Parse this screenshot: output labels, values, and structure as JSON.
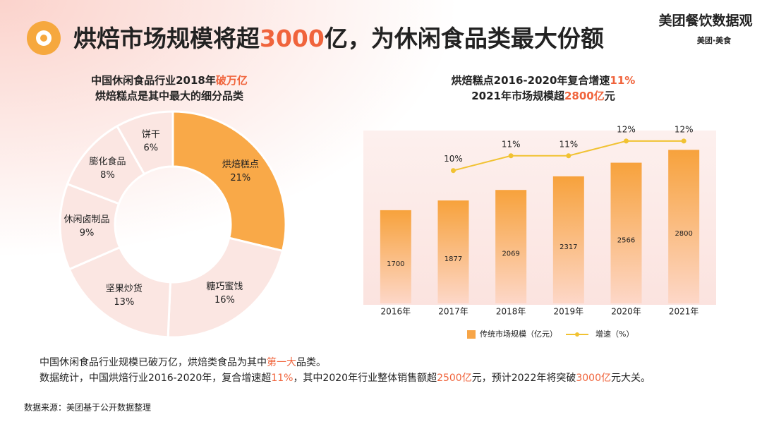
{
  "header": {
    "title": [
      "烘焙市场规模将超",
      "3000",
      "亿，为休闲食品类最大份额"
    ],
    "logo": "美团餐饮数据观",
    "brand": "美团·美食"
  },
  "chart_data": [
    {
      "type": "donut",
      "subtitle_lines": [
        [
          "中国休闲食品行业2018年",
          "破万亿"
        ],
        [
          "烘焙糕点是其中最大的细分品类"
        ]
      ],
      "categories": [
        "烘焙糕点",
        "糖巧蜜饯",
        "坚果炒货",
        "休闲卤制品",
        "膨化食品",
        "饼干"
      ],
      "values": [
        21,
        16,
        13,
        9,
        8,
        6
      ],
      "value_labels": [
        "21%",
        "16%",
        "13%",
        "9%",
        "8%",
        "6%"
      ],
      "colors": [
        "#f9a948",
        "#fbe6e2",
        "#fbe6e2",
        "#fbe6e2",
        "#fbe6e2",
        "#fbe6e2"
      ]
    },
    {
      "type": "bar_line",
      "subtitle_lines": [
        [
          "烘焙糕点2016-2020年复合增速",
          "11%"
        ],
        [
          "2021年市场规模超",
          "2800亿",
          "元"
        ]
      ],
      "categories": [
        "2016年",
        "2017年",
        "2018年",
        "2019年",
        "2020年",
        "2021年"
      ],
      "ylim": [
        0,
        3500
      ],
      "y2lim": [
        1,
        14
      ],
      "series": [
        {
          "name": "传统市场规模（亿元）",
          "type": "bar",
          "color": "#f7a547",
          "values": [
            1700,
            1877,
            2069,
            2317,
            2566,
            2800
          ]
        },
        {
          "name": "增速（%）",
          "type": "line",
          "axis": "y2",
          "color": "#f1c232",
          "values": [
            null,
            10,
            11,
            11,
            12,
            12
          ],
          "value_labels": [
            null,
            "10%",
            "11%",
            "11%",
            "12%",
            "12%"
          ]
        }
      ]
    }
  ],
  "notes": [
    [
      "中国休闲食品行业规模已破万亿，烘焙类食品为其中",
      "第一大",
      "品类。"
    ],
    [
      "数据统计，中国烘焙行业2016-2020年，复合增速超",
      "11%",
      "，其中2020年行业整体销售额超",
      "2500亿",
      "元，预计2022年将突破",
      "3000亿",
      "元大关。"
    ]
  ],
  "source": "数据来源：美团基于公开数据整理"
}
